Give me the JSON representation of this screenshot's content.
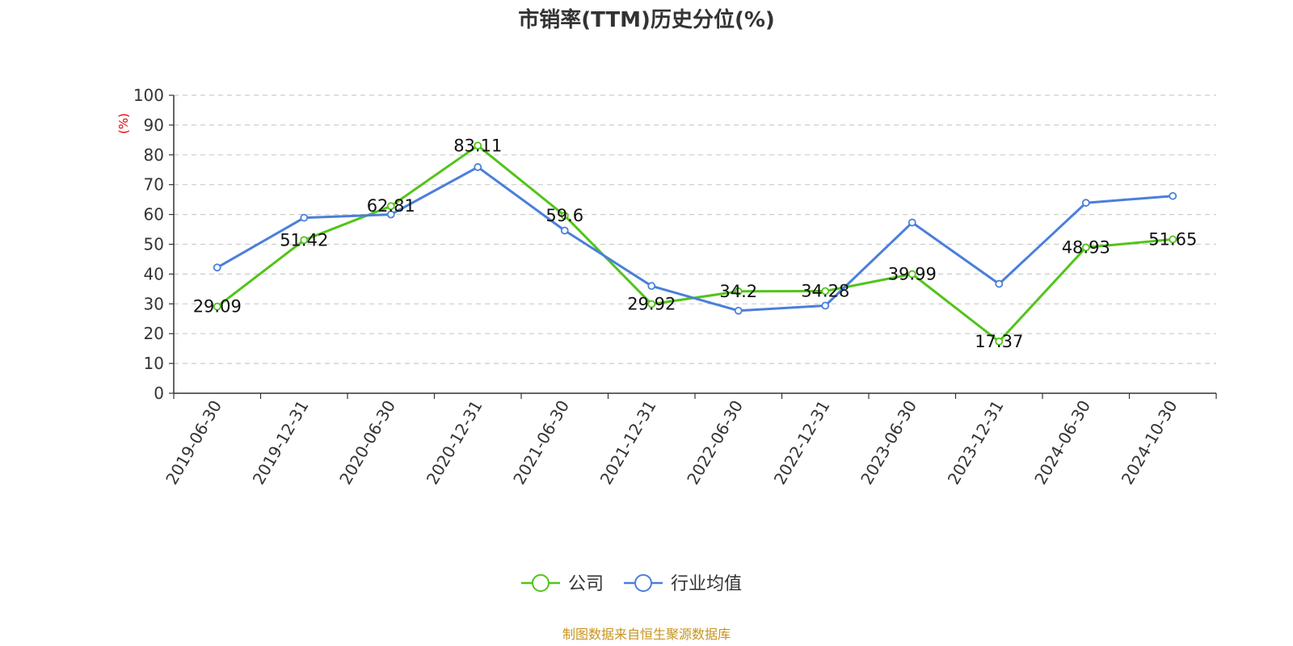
{
  "chart_data": {
    "type": "line",
    "title": "市销率(TTM)历史分位(%)",
    "ylabel": "(%)",
    "xlabel": "",
    "ylim": [
      0,
      100
    ],
    "yticks": [
      0,
      10,
      20,
      30,
      40,
      50,
      60,
      70,
      80,
      90,
      100
    ],
    "grid": true,
    "legend_position": "bottom",
    "categories": [
      "2019-06-30",
      "2019-12-31",
      "2020-06-30",
      "2020-12-31",
      "2021-06-30",
      "2021-12-31",
      "2022-06-30",
      "2022-12-31",
      "2023-06-30",
      "2023-12-31",
      "2024-06-30",
      "2024-10-30"
    ],
    "series": [
      {
        "name": "公司",
        "color": "#52c41a",
        "show_labels": true,
        "values": [
          29.09,
          51.42,
          62.81,
          83.11,
          59.6,
          29.92,
          34.2,
          34.28,
          39.99,
          17.37,
          48.93,
          51.65
        ],
        "labels": [
          "29.09",
          "51.42",
          "62.81",
          "83.11",
          "59.6",
          "29.92",
          "34.2",
          "34.28",
          "39.99",
          "17.37",
          "48.93",
          "51.65"
        ]
      },
      {
        "name": "行业均值",
        "color": "#4a7fdb",
        "show_labels": false,
        "values": [
          42.2,
          58.9,
          60.0,
          75.9,
          54.6,
          36.0,
          27.7,
          29.4,
          57.3,
          36.7,
          63.9,
          66.2
        ]
      }
    ],
    "source": "制图数据来自恒生聚源数据库"
  }
}
